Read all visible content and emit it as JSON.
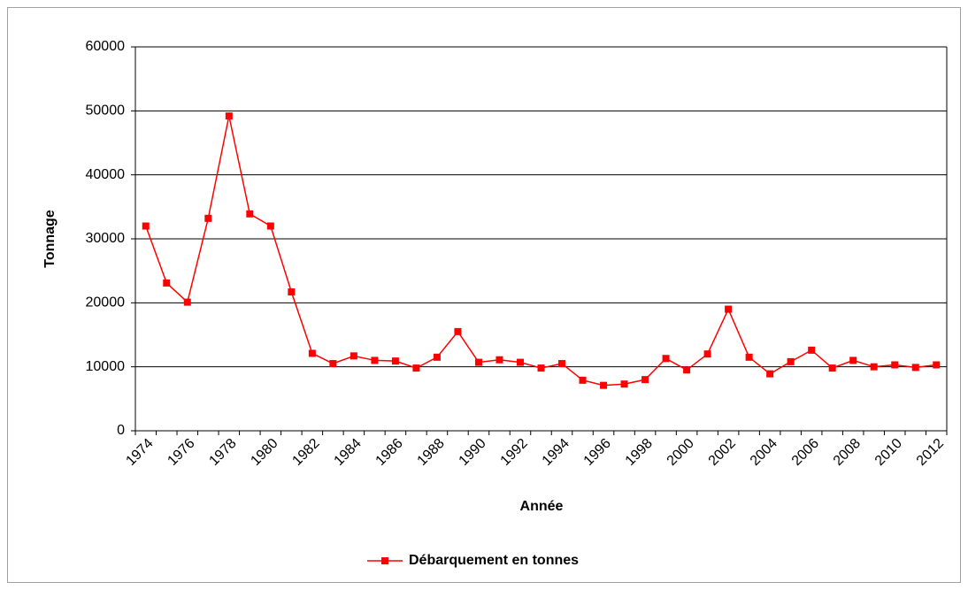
{
  "chart_data": {
    "type": "line",
    "x_label": "Année",
    "y_label": "Tonnage",
    "categories": [
      "1974",
      null,
      "1976",
      null,
      "1978",
      null,
      "1980",
      null,
      "1982",
      null,
      "1984",
      null,
      "1986",
      null,
      "1988",
      null,
      "1990",
      null,
      "1992",
      null,
      "1994",
      null,
      "1996",
      null,
      "1998",
      null,
      "2000",
      null,
      "2002",
      null,
      "2004",
      null,
      "2006",
      null,
      "2008",
      null,
      "2010",
      null,
      "2012"
    ],
    "series": [
      {
        "name": "Débarquement en tonnes",
        "color": "#ff0000",
        "values": [
          32000,
          23100,
          20100,
          33200,
          49200,
          33900,
          32000,
          21700,
          12100,
          10500,
          11700,
          11000,
          10900,
          9800,
          11500,
          15500,
          10700,
          11100,
          10700,
          9800,
          10500,
          7900,
          7100,
          7300,
          8000,
          11300,
          9500,
          12000,
          19000,
          11500,
          8900,
          10800,
          12600,
          9800,
          11000,
          10000,
          10300,
          9900,
          10300
        ]
      }
    ],
    "ylim": [
      0,
      60000
    ],
    "yticks": [
      0,
      10000,
      20000,
      30000,
      40000,
      50000,
      60000
    ],
    "grid": true,
    "legend": "bottom"
  }
}
